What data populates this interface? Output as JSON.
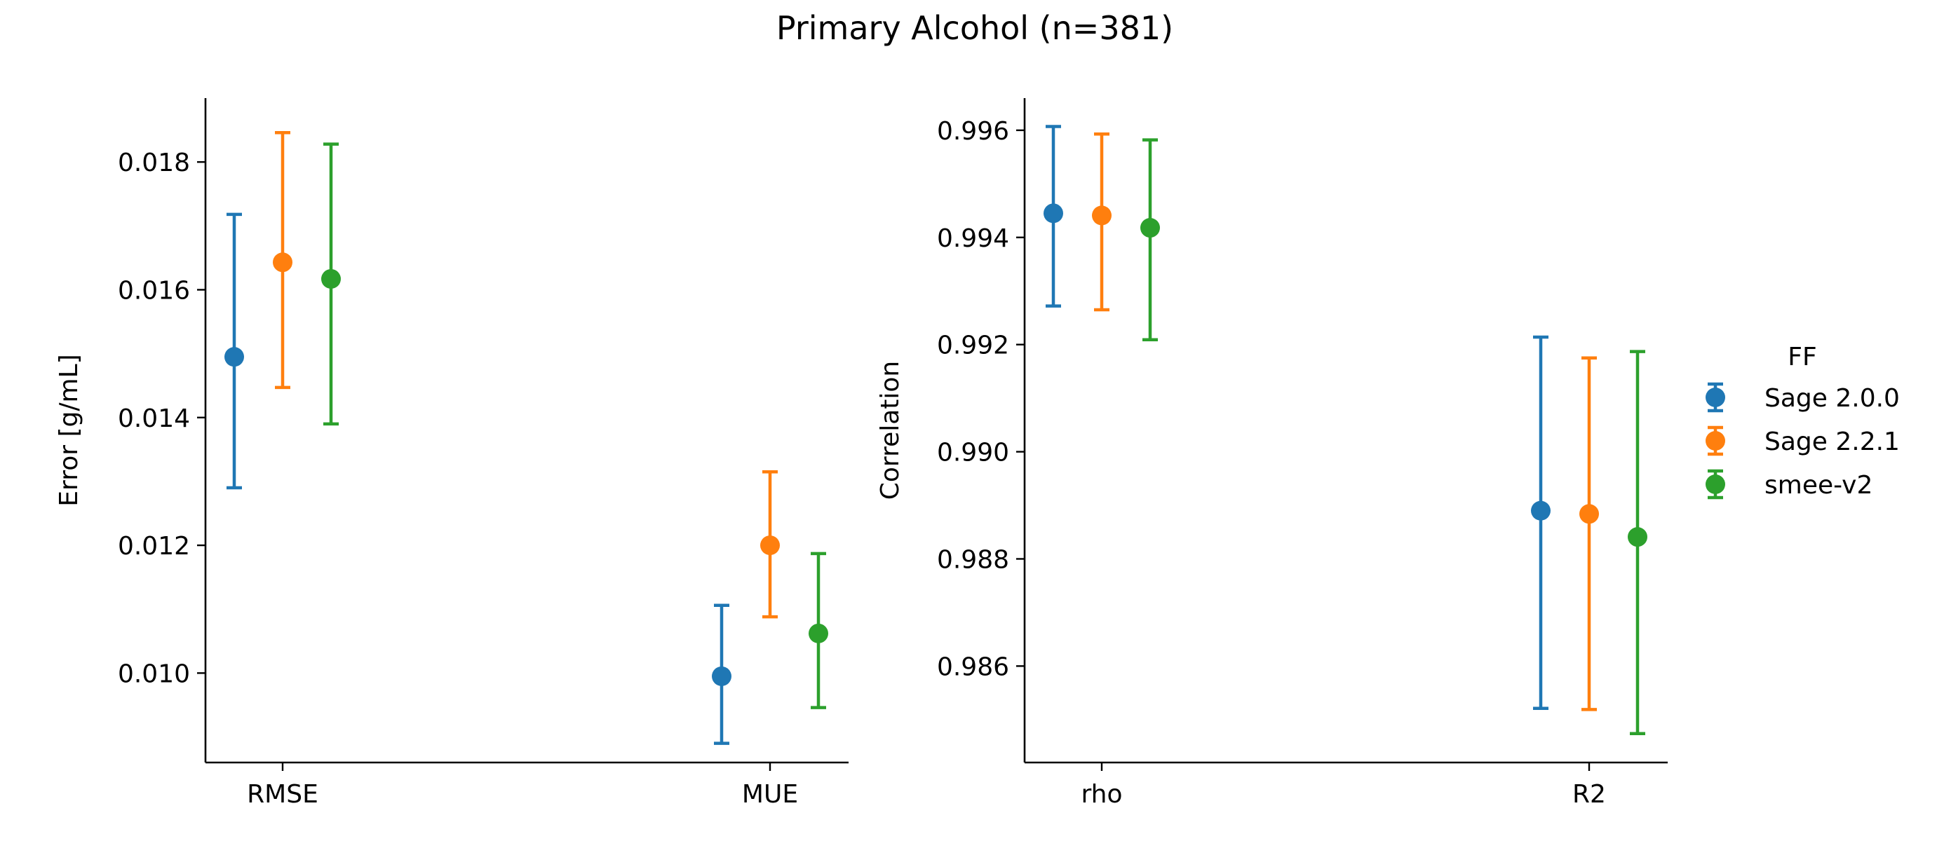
{
  "title": "Primary Alcohol (n=381)",
  "legend": {
    "title": "FF",
    "placement": "right",
    "entries": [
      {
        "name": "Sage 2.0.0",
        "color": "#1f77b4"
      },
      {
        "name": "Sage 2.2.1",
        "color": "#ff7f0e"
      },
      {
        "name": "smee-v2",
        "color": "#2ca02c"
      }
    ]
  },
  "chart_data": [
    {
      "type": "scatter",
      "subtype": "point-with-error-bars",
      "title": "",
      "xlabel": "",
      "ylabel": "Error [g/mL]",
      "categories": [
        "RMSE",
        "MUE"
      ],
      "ylim": [
        0.0086,
        0.019
      ],
      "yticks": [
        0.01,
        0.012,
        0.014,
        0.016,
        0.018
      ],
      "ytick_labels": [
        "0.010",
        "0.012",
        "0.014",
        "0.016",
        "0.018"
      ],
      "grid": false,
      "series": [
        {
          "name": "Sage 2.0.0",
          "color": "#1f77b4",
          "values": [
            0.01495,
            0.00995
          ],
          "lower": [
            0.0129,
            0.0089
          ],
          "upper": [
            0.01718,
            0.01106
          ]
        },
        {
          "name": "Sage 2.2.1",
          "color": "#ff7f0e",
          "values": [
            0.01643,
            0.012
          ],
          "lower": [
            0.01447,
            0.01088
          ],
          "upper": [
            0.01846,
            0.01315
          ]
        },
        {
          "name": "smee-v2",
          "color": "#2ca02c",
          "values": [
            0.01617,
            0.01062
          ],
          "lower": [
            0.0139,
            0.00946
          ],
          "upper": [
            0.01828,
            0.01187
          ]
        }
      ]
    },
    {
      "type": "scatter",
      "subtype": "point-with-error-bars",
      "title": "",
      "xlabel": "",
      "ylabel": "Correlation",
      "categories": [
        "rho",
        "R2"
      ],
      "ylim": [
        0.9842,
        0.9966
      ],
      "yticks": [
        0.986,
        0.988,
        0.99,
        0.992,
        0.994,
        0.996
      ],
      "ytick_labels": [
        "0.986",
        "0.988",
        "0.990",
        "0.992",
        "0.994",
        "0.996"
      ],
      "grid": false,
      "series": [
        {
          "name": "Sage 2.0.0",
          "color": "#1f77b4",
          "values": [
            0.99445,
            0.9889
          ],
          "lower": [
            0.99272,
            0.98521
          ],
          "upper": [
            0.99607,
            0.99214
          ]
        },
        {
          "name": "Sage 2.2.1",
          "color": "#ff7f0e",
          "values": [
            0.99441,
            0.98884
          ],
          "lower": [
            0.99265,
            0.98519
          ],
          "upper": [
            0.99593,
            0.99175
          ]
        },
        {
          "name": "smee-v2",
          "color": "#2ca02c",
          "values": [
            0.99418,
            0.98841
          ],
          "lower": [
            0.99209,
            0.98474
          ],
          "upper": [
            0.99582,
            0.99187
          ]
        }
      ]
    }
  ]
}
